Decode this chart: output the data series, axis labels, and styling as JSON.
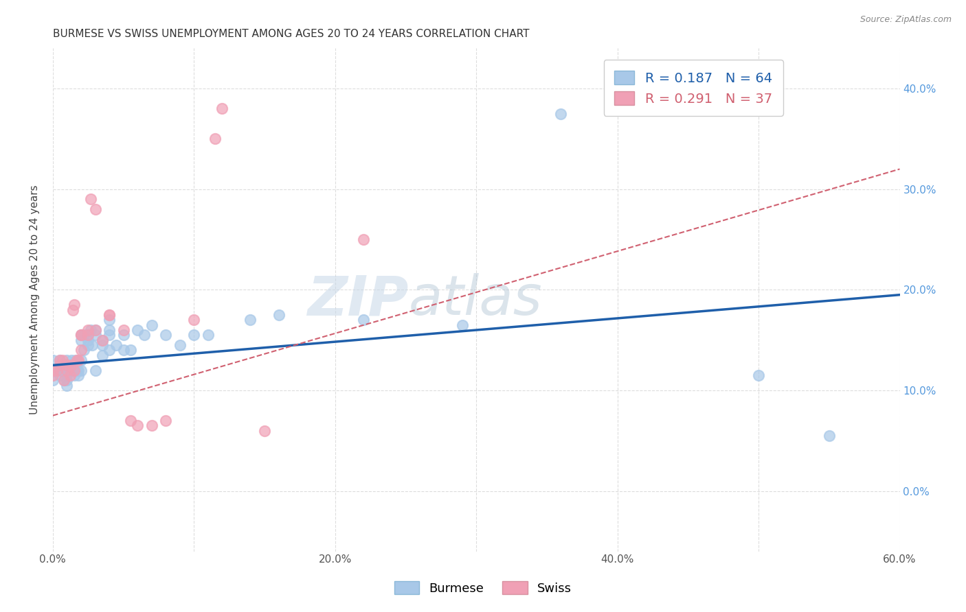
{
  "title": "BURMESE VS SWISS UNEMPLOYMENT AMONG AGES 20 TO 24 YEARS CORRELATION CHART",
  "source": "Source: ZipAtlas.com",
  "xlabel": "",
  "ylabel": "Unemployment Among Ages 20 to 24 years",
  "xlim": [
    0.0,
    0.6
  ],
  "ylim": [
    -0.06,
    0.44
  ],
  "xticks": [
    0.0,
    0.1,
    0.2,
    0.3,
    0.4,
    0.5,
    0.6
  ],
  "xticklabels": [
    "0.0%",
    "",
    "20.0%",
    "",
    "40.0%",
    "",
    "60.0%"
  ],
  "yticks": [
    0.0,
    0.1,
    0.2,
    0.3,
    0.4
  ],
  "yticklabels": [
    "0.0%",
    "10.0%",
    "20.0%",
    "30.0%",
    "40.0%"
  ],
  "burmese_color": "#a8c8e8",
  "swiss_color": "#f0a0b5",
  "burmese_R": 0.187,
  "burmese_N": 64,
  "swiss_R": 0.291,
  "swiss_N": 37,
  "burmese_line_color": "#1f5faa",
  "swiss_line_color": "#d06070",
  "watermark_zip": "ZIP",
  "watermark_atlas": "atlas",
  "background_color": "#ffffff",
  "grid_color": "#dddddd",
  "burmese_x": [
    0.0,
    0.0,
    0.0,
    0.005,
    0.005,
    0.005,
    0.007,
    0.008,
    0.008,
    0.01,
    0.01,
    0.01,
    0.01,
    0.01,
    0.012,
    0.012,
    0.013,
    0.013,
    0.015,
    0.015,
    0.016,
    0.016,
    0.017,
    0.018,
    0.018,
    0.02,
    0.02,
    0.02,
    0.02,
    0.022,
    0.022,
    0.025,
    0.025,
    0.025,
    0.027,
    0.028,
    0.03,
    0.03,
    0.03,
    0.035,
    0.035,
    0.035,
    0.04,
    0.04,
    0.04,
    0.04,
    0.045,
    0.05,
    0.05,
    0.055,
    0.06,
    0.065,
    0.07,
    0.08,
    0.09,
    0.1,
    0.11,
    0.14,
    0.16,
    0.22,
    0.29,
    0.36,
    0.5,
    0.55
  ],
  "burmese_y": [
    0.12,
    0.13,
    0.11,
    0.12,
    0.13,
    0.115,
    0.12,
    0.11,
    0.12,
    0.125,
    0.13,
    0.115,
    0.11,
    0.105,
    0.125,
    0.12,
    0.13,
    0.12,
    0.115,
    0.12,
    0.13,
    0.125,
    0.12,
    0.115,
    0.12,
    0.155,
    0.15,
    0.13,
    0.12,
    0.14,
    0.155,
    0.145,
    0.15,
    0.155,
    0.16,
    0.145,
    0.155,
    0.16,
    0.12,
    0.145,
    0.15,
    0.135,
    0.17,
    0.16,
    0.155,
    0.14,
    0.145,
    0.155,
    0.14,
    0.14,
    0.16,
    0.155,
    0.165,
    0.155,
    0.145,
    0.155,
    0.155,
    0.17,
    0.175,
    0.17,
    0.165,
    0.375,
    0.115,
    0.055
  ],
  "swiss_x": [
    0.0,
    0.0,
    0.003,
    0.005,
    0.005,
    0.007,
    0.008,
    0.01,
    0.01,
    0.012,
    0.013,
    0.014,
    0.015,
    0.015,
    0.017,
    0.018,
    0.02,
    0.02,
    0.02,
    0.025,
    0.025,
    0.027,
    0.03,
    0.03,
    0.035,
    0.04,
    0.04,
    0.05,
    0.055,
    0.06,
    0.07,
    0.08,
    0.1,
    0.115,
    0.12,
    0.15,
    0.22
  ],
  "swiss_y": [
    0.115,
    0.12,
    0.12,
    0.125,
    0.13,
    0.13,
    0.11,
    0.12,
    0.125,
    0.115,
    0.125,
    0.18,
    0.185,
    0.12,
    0.13,
    0.13,
    0.155,
    0.155,
    0.14,
    0.155,
    0.16,
    0.29,
    0.28,
    0.16,
    0.15,
    0.175,
    0.175,
    0.16,
    0.07,
    0.065,
    0.065,
    0.07,
    0.17,
    0.35,
    0.38,
    0.06,
    0.25
  ],
  "burmese_line_x0": 0.0,
  "burmese_line_x1": 0.6,
  "burmese_line_y0": 0.125,
  "burmese_line_y1": 0.195,
  "swiss_line_x0": 0.0,
  "swiss_line_x1": 0.6,
  "swiss_line_y0": 0.075,
  "swiss_line_y1": 0.32
}
